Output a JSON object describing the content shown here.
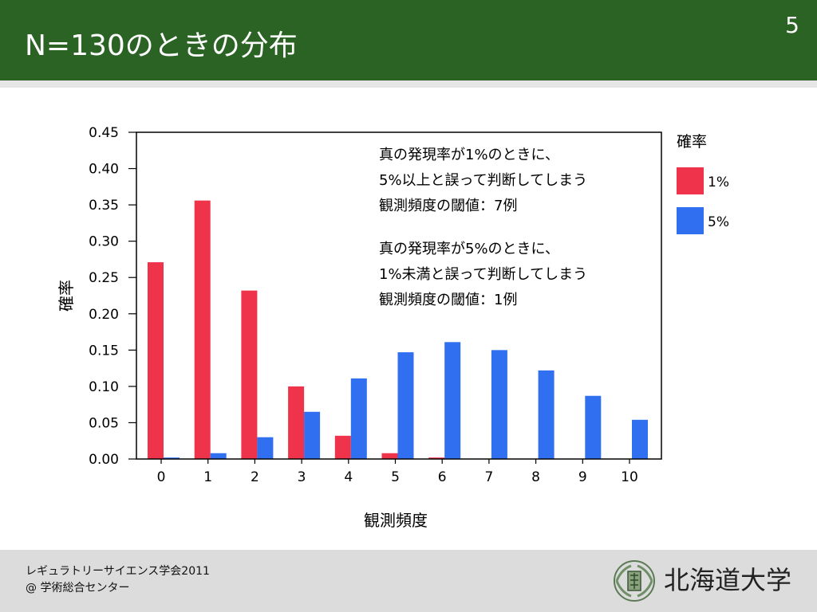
{
  "slide": {
    "title": "N=130のときの分布",
    "page_number": "5"
  },
  "footer": {
    "line1": "レギュラトリーサイエンス学会2011",
    "line2": "@ 学術総合センター",
    "university": "北海道大学"
  },
  "annotations": {
    "block1": [
      "真の発現率が1%のときに、",
      "5%以上と誤って判断してしまう",
      "観測頻度の閾値：7例"
    ],
    "block2": [
      "真の発現率が5%のときに、",
      "1%未満と誤って判断してしまう",
      "観測頻度の閾値：1例"
    ]
  },
  "legend": {
    "title": "確率",
    "items": [
      "1%",
      "5%"
    ]
  },
  "colors": {
    "header": "#2b6325",
    "series_1pct": "#ee334a",
    "series_5pct": "#2f6ff0"
  },
  "chart_data": {
    "type": "bar",
    "title": "",
    "xlabel": "観測頻度",
    "ylabel": "確率",
    "ylim": [
      0,
      0.45
    ],
    "y_ticks": [
      "0.00",
      "0.05",
      "0.10",
      "0.15",
      "0.20",
      "0.25",
      "0.30",
      "0.35",
      "0.40",
      "0.45"
    ],
    "categories": [
      "0",
      "1",
      "2",
      "3",
      "4",
      "5",
      "6",
      "7",
      "8",
      "9",
      "10"
    ],
    "series": [
      {
        "name": "1%",
        "values": [
          0.271,
          0.356,
          0.232,
          0.1,
          0.032,
          0.008,
          0.002,
          0.0,
          0.0,
          0.0,
          0.0
        ]
      },
      {
        "name": "5%",
        "values": [
          0.002,
          0.008,
          0.03,
          0.065,
          0.111,
          0.147,
          0.161,
          0.15,
          0.122,
          0.087,
          0.054
        ]
      }
    ],
    "legend_position": "right",
    "grid": false
  }
}
